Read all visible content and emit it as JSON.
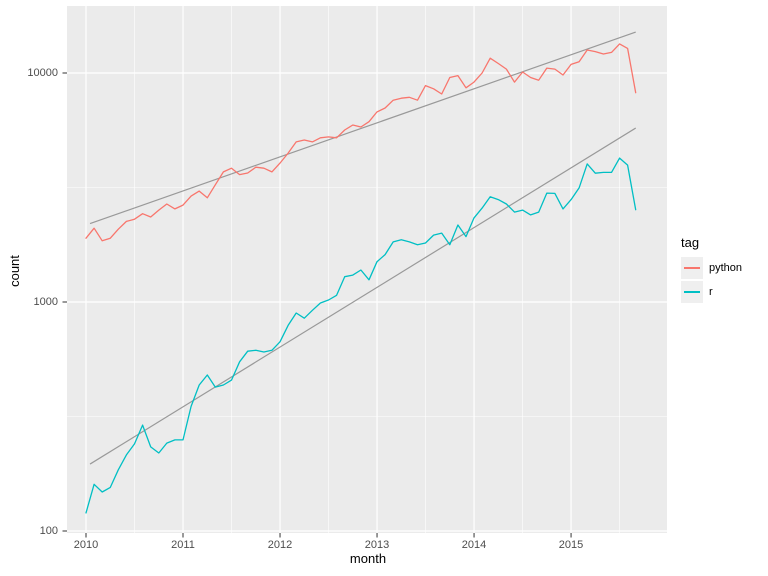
{
  "figure": {
    "background": "#FFFFFF",
    "panel_background": "#EBEBEB",
    "grid_color": "#FFFFFF",
    "tick_color": "#333333",
    "tick_label_color": "#4D4D4D"
  },
  "axes": {
    "x": {
      "label": "month",
      "ticks": [
        "2010",
        "2011",
        "2012",
        "2013",
        "2014",
        "2015"
      ]
    },
    "y": {
      "label": "count",
      "ticks": [
        "100",
        "1000",
        "10000"
      ]
    }
  },
  "legend": {
    "title": "tag",
    "position": "right",
    "entries": [
      {
        "label": "python",
        "color": "#F8766D"
      },
      {
        "label": "r",
        "color": "#00BFC4"
      }
    ]
  },
  "chart_data": {
    "type": "line",
    "title": "",
    "xlabel": "month",
    "ylabel": "count",
    "y_scale": "log10",
    "ylim": [
      98,
      19600
    ],
    "x_range": [
      "2010-01",
      "2015-09"
    ],
    "x_frequency": "monthly",
    "major_y_breaks": [
      100,
      1000,
      10000
    ],
    "minor_y_breaks": [
      316.23,
      3162.28
    ],
    "x_year_break_month_index": [
      0,
      12,
      24,
      36,
      48,
      60
    ],
    "x_halfyear_minor_month_index": [
      6,
      18,
      30,
      42,
      54,
      66
    ],
    "grid": true,
    "legend_position": "right",
    "months": [
      "2010-01",
      "2010-02",
      "2010-03",
      "2010-04",
      "2010-05",
      "2010-06",
      "2010-07",
      "2010-08",
      "2010-09",
      "2010-10",
      "2010-11",
      "2010-12",
      "2011-01",
      "2011-02",
      "2011-03",
      "2011-04",
      "2011-05",
      "2011-06",
      "2011-07",
      "2011-08",
      "2011-09",
      "2011-10",
      "2011-11",
      "2011-12",
      "2012-01",
      "2012-02",
      "2012-03",
      "2012-04",
      "2012-05",
      "2012-06",
      "2012-07",
      "2012-08",
      "2012-09",
      "2012-10",
      "2012-11",
      "2012-12",
      "2013-01",
      "2013-02",
      "2013-03",
      "2013-04",
      "2013-05",
      "2013-06",
      "2013-07",
      "2013-08",
      "2013-09",
      "2013-10",
      "2013-11",
      "2013-12",
      "2014-01",
      "2014-02",
      "2014-03",
      "2014-04",
      "2014-05",
      "2014-06",
      "2014-07",
      "2014-08",
      "2014-09",
      "2014-10",
      "2014-11",
      "2014-12",
      "2015-01",
      "2015-02",
      "2015-03",
      "2015-04",
      "2015-05",
      "2015-06",
      "2015-07",
      "2015-08",
      "2015-09"
    ],
    "series": [
      {
        "name": "python",
        "color": "#F8766D",
        "values": [
          1900,
          2100,
          1850,
          1900,
          2080,
          2250,
          2300,
          2430,
          2350,
          2520,
          2680,
          2550,
          2650,
          2900,
          3050,
          2850,
          3250,
          3700,
          3840,
          3600,
          3660,
          3880,
          3840,
          3700,
          4040,
          4470,
          5000,
          5100,
          5000,
          5210,
          5260,
          5210,
          5640,
          5930,
          5810,
          6130,
          6760,
          7030,
          7610,
          7760,
          7830,
          7610,
          8810,
          8530,
          8100,
          9560,
          9740,
          8620,
          9130,
          10000,
          11600,
          11000,
          10400,
          9130,
          10100,
          9560,
          9300,
          10500,
          10400,
          9800,
          10900,
          11200,
          12600,
          12400,
          12100,
          12300,
          13400,
          12800,
          8200
        ]
      },
      {
        "name": "r",
        "color": "#00BFC4",
        "values": [
          120,
          160,
          148,
          155,
          185,
          215,
          240,
          290,
          233,
          219,
          242,
          250,
          250,
          350,
          434,
          480,
          425,
          434,
          456,
          548,
          610,
          615,
          605,
          615,
          670,
          790,
          895,
          850,
          920,
          990,
          1020,
          1070,
          1290,
          1310,
          1380,
          1250,
          1500,
          1610,
          1830,
          1870,
          1830,
          1780,
          1810,
          1960,
          2000,
          1780,
          2170,
          1930,
          2330,
          2570,
          2880,
          2800,
          2680,
          2470,
          2520,
          2400,
          2470,
          2990,
          2980,
          2550,
          2800,
          3150,
          4010,
          3650,
          3680,
          3680,
          4250,
          3960,
          2530
        ]
      }
    ],
    "trend_lines": [
      {
        "name": "python-trend",
        "color": "#999999",
        "start_value": 2200,
        "end_value": 15100
      },
      {
        "name": "r-trend",
        "color": "#999999",
        "start_value": 196,
        "end_value": 5750
      }
    ]
  }
}
